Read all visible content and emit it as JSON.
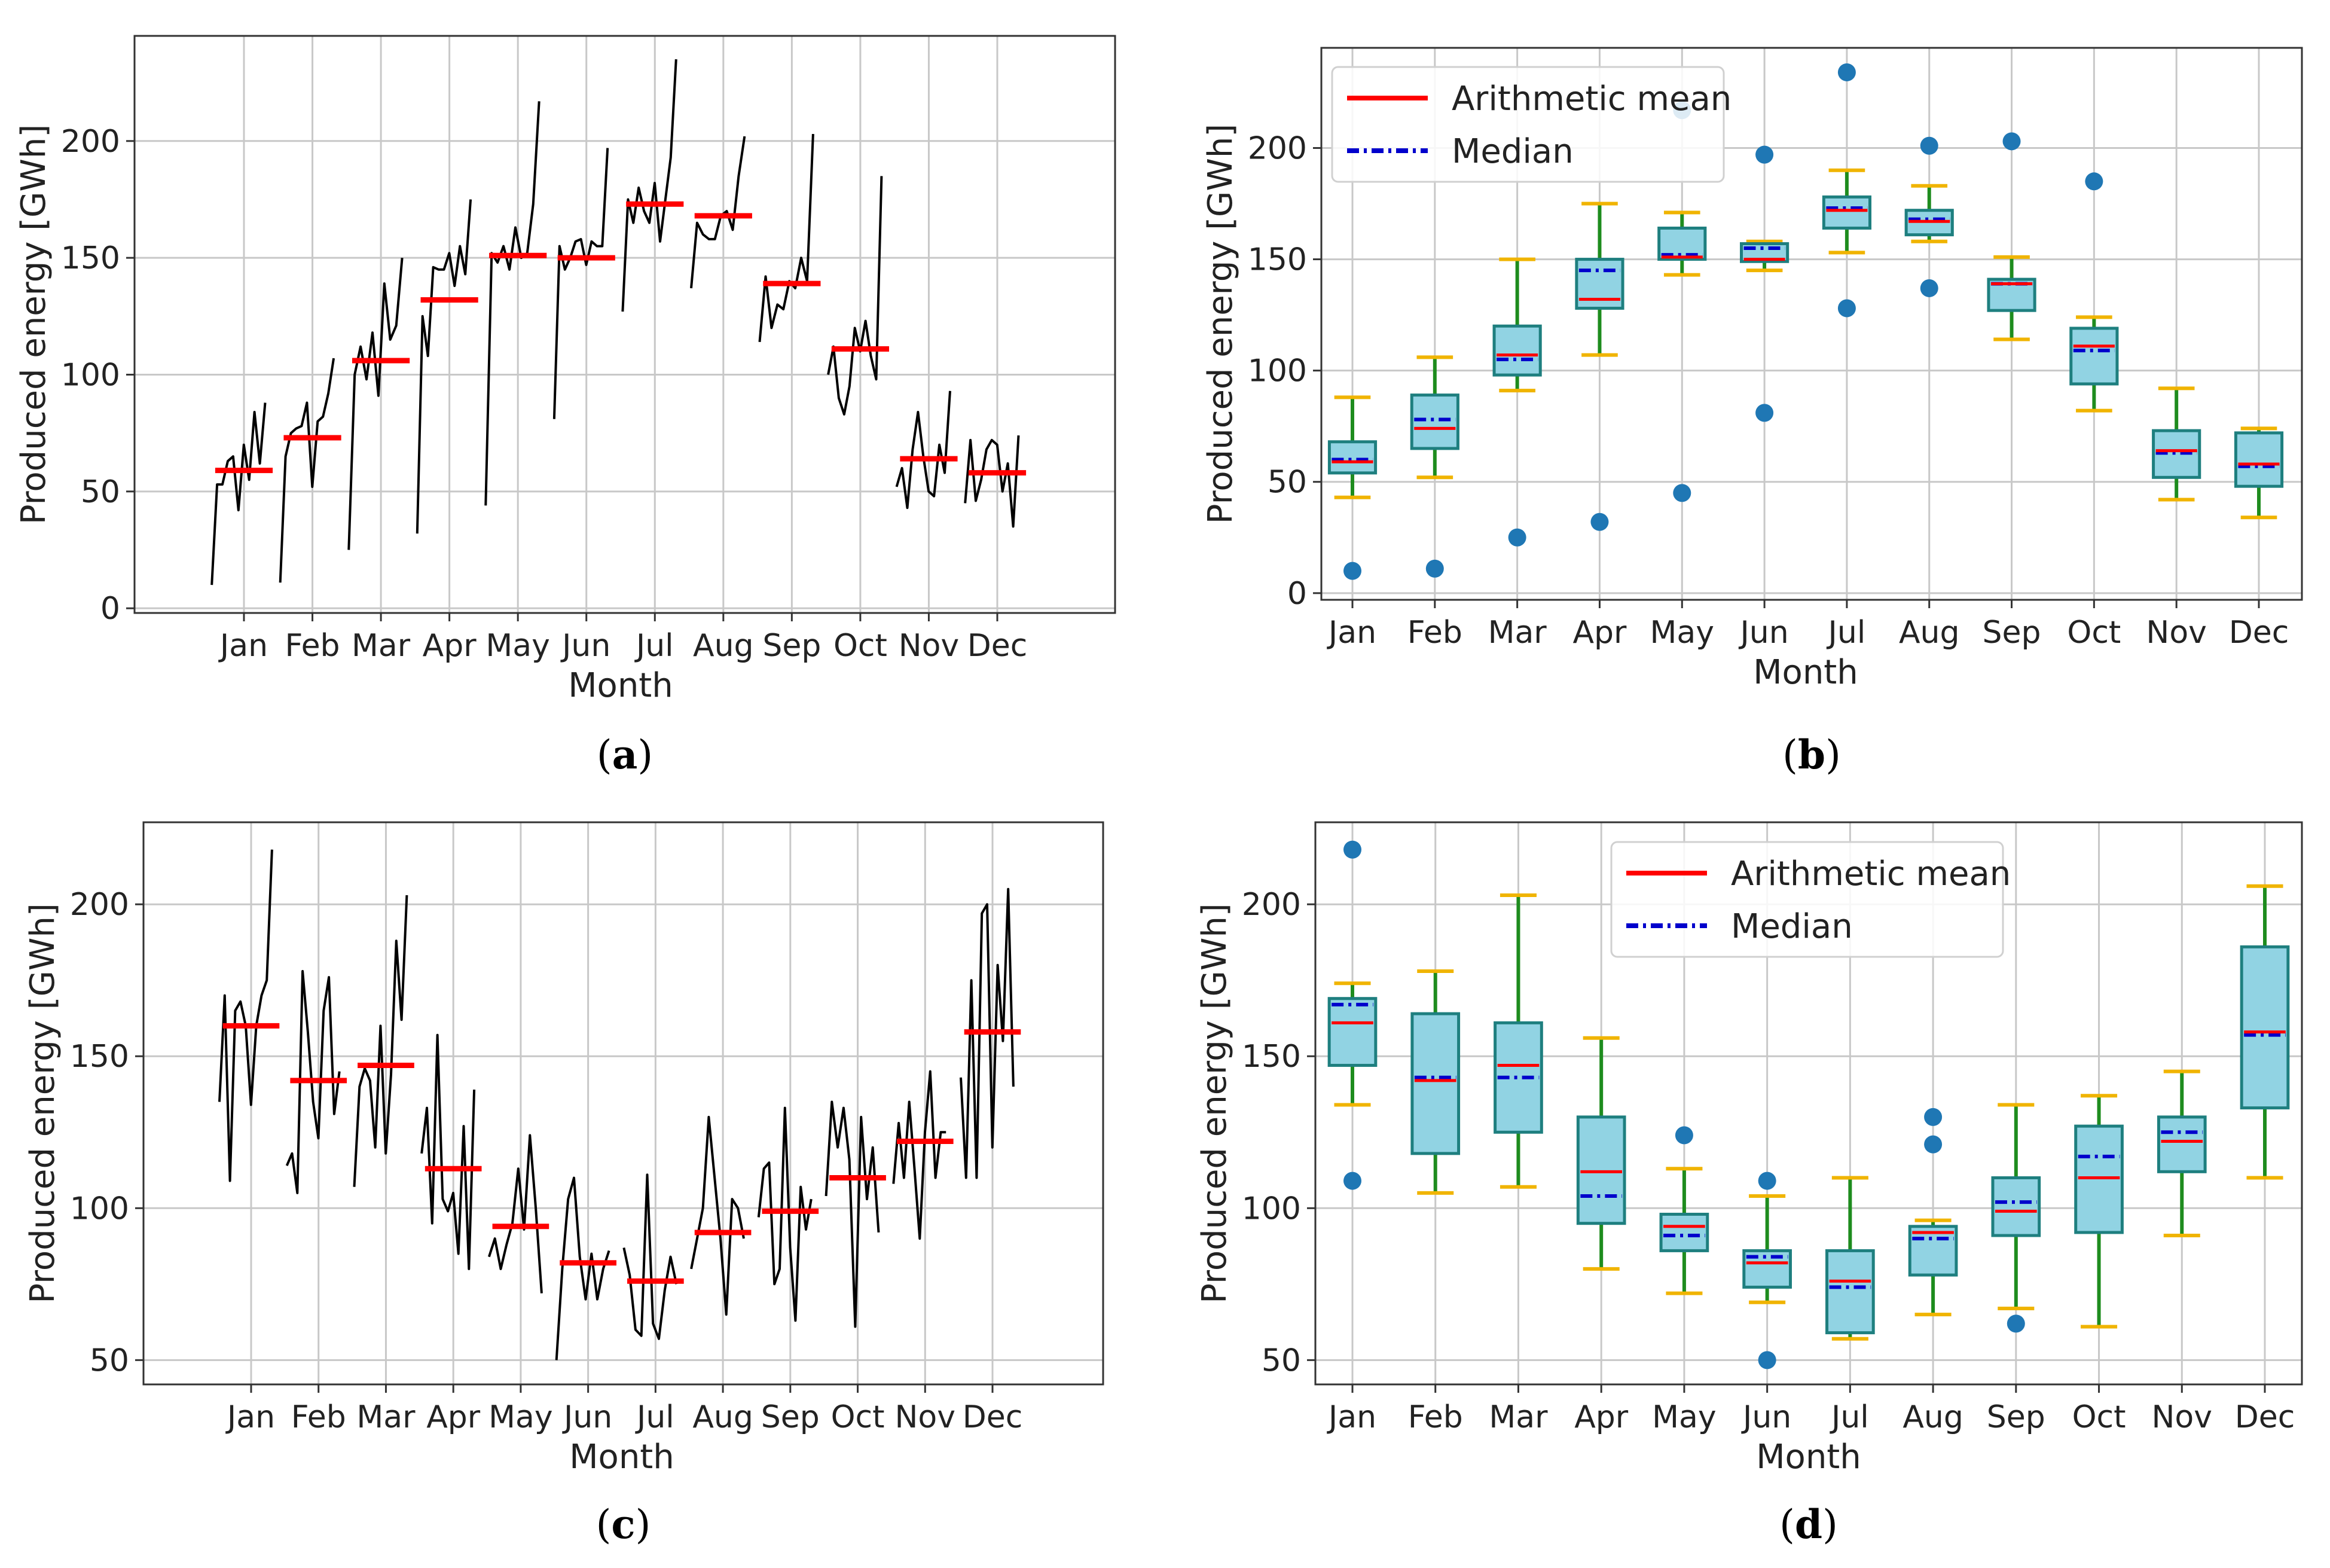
{
  "colors": {
    "series_line": "#000000",
    "mean": "#ff0000",
    "median": "#0000cc",
    "box_fill": "#91d3e3",
    "box_edge": "#1e7f7f",
    "whisker": "#1e8c1e",
    "cap": "#f0b400",
    "flier": "#1f77b4",
    "grid": "#c8c8c8",
    "axis": "#333333"
  },
  "chart_data": [
    {
      "id": "a",
      "type": "line",
      "caption": [
        "(",
        "a",
        ")"
      ],
      "xlabel": "Month",
      "ylabel": "Produced energy [GWh]",
      "ylim": [
        -2,
        245
      ],
      "yticks": [
        0,
        50,
        100,
        150,
        200
      ],
      "grid": true,
      "categories": [
        "Jan",
        "Feb",
        "Mar",
        "Apr",
        "May",
        "Jun",
        "Jul",
        "Aug",
        "Sep",
        "Oct",
        "Nov",
        "Dec"
      ],
      "monthly_mean": [
        59,
        73,
        106,
        132,
        151,
        150,
        173,
        168,
        139,
        111,
        64,
        58
      ],
      "daily": [
        [
          10,
          53,
          53,
          63,
          65,
          42,
          70,
          55,
          84,
          62,
          88
        ],
        [
          11,
          65,
          75,
          77,
          78,
          88,
          52,
          80,
          82,
          92,
          107
        ],
        [
          25,
          100,
          112,
          98,
          118,
          91,
          139,
          115,
          121,
          150
        ],
        [
          32,
          125,
          108,
          146,
          145,
          145,
          152,
          138,
          155,
          143,
          175
        ],
        [
          44,
          152,
          148,
          155,
          145,
          163,
          150,
          152,
          173,
          217
        ],
        [
          81,
          155,
          145,
          150,
          157,
          158,
          147,
          157,
          155,
          155,
          197
        ],
        [
          127,
          175,
          165,
          180,
          170,
          165,
          182,
          157,
          175,
          193,
          235
        ],
        [
          137,
          165,
          160,
          158,
          158,
          168,
          170,
          162,
          185,
          202
        ],
        [
          114,
          142,
          120,
          130,
          128,
          140,
          137,
          150,
          140,
          203
        ],
        [
          100,
          112,
          90,
          83,
          95,
          120,
          110,
          123,
          108,
          98,
          185
        ],
        [
          52,
          60,
          43,
          68,
          84,
          65,
          50,
          48,
          70,
          58,
          93
        ],
        [
          45,
          72,
          46,
          55,
          68,
          72,
          70,
          50,
          62,
          35,
          74
        ]
      ]
    },
    {
      "id": "b",
      "type": "box",
      "caption": [
        "(",
        "b",
        ")"
      ],
      "xlabel": "Month",
      "ylabel": "Produced energy [GWh]",
      "ylim": [
        -3,
        245
      ],
      "yticks": [
        0,
        50,
        100,
        150,
        200
      ],
      "grid": true,
      "legend": {
        "location": "top-left",
        "entries": [
          "Arithmetic mean",
          "Median"
        ]
      },
      "categories": [
        "Jan",
        "Feb",
        "Mar",
        "Apr",
        "May",
        "Jun",
        "Jul",
        "Aug",
        "Sep",
        "Oct",
        "Nov",
        "Dec"
      ],
      "boxes": [
        {
          "whislo": 43,
          "q1": 54,
          "med": 60,
          "q3": 68,
          "whishi": 88,
          "mean": 59,
          "fliers": [
            10
          ]
        },
        {
          "whislo": 52,
          "q1": 65,
          "med": 78,
          "q3": 89,
          "whishi": 106,
          "mean": 74,
          "fliers": [
            11
          ]
        },
        {
          "whislo": 91,
          "q1": 98,
          "med": 105,
          "q3": 120,
          "whishi": 150,
          "mean": 107,
          "fliers": [
            25
          ]
        },
        {
          "whislo": 107,
          "q1": 128,
          "med": 145,
          "q3": 150,
          "whishi": 175,
          "mean": 132,
          "fliers": [
            32
          ]
        },
        {
          "whislo": 143,
          "q1": 150,
          "med": 152,
          "q3": 164,
          "whishi": 171,
          "mean": 151,
          "fliers": [
            45,
            217
          ]
        },
        {
          "whislo": 145,
          "q1": 149,
          "med": 155,
          "q3": 157,
          "whishi": 158,
          "mean": 150,
          "fliers": [
            81,
            197
          ]
        },
        {
          "whislo": 153,
          "q1": 164,
          "med": 173,
          "q3": 178,
          "whishi": 190,
          "mean": 172,
          "fliers": [
            128,
            234
          ]
        },
        {
          "whislo": 158,
          "q1": 161,
          "med": 168,
          "q3": 172,
          "whishi": 183,
          "mean": 167,
          "fliers": [
            137,
            201
          ]
        },
        {
          "whislo": 114,
          "q1": 127,
          "med": 139,
          "q3": 141,
          "whishi": 151,
          "mean": 139,
          "fliers": [
            203
          ]
        },
        {
          "whislo": 82,
          "q1": 94,
          "med": 109,
          "q3": 119,
          "whishi": 124,
          "mean": 111,
          "fliers": [
            185
          ]
        },
        {
          "whislo": 42,
          "q1": 52,
          "med": 63,
          "q3": 73,
          "whishi": 92,
          "mean": 64,
          "fliers": []
        },
        {
          "whislo": 34,
          "q1": 48,
          "med": 57,
          "q3": 72,
          "whishi": 74,
          "mean": 58,
          "fliers": []
        }
      ]
    },
    {
      "id": "c",
      "type": "line",
      "caption": [
        "(",
        "c",
        ")"
      ],
      "xlabel": "Month",
      "ylabel": "Produced energy [GWh]",
      "ylim": [
        42,
        227
      ],
      "yticks": [
        50,
        100,
        150,
        200
      ],
      "grid": true,
      "categories": [
        "Jan",
        "Feb",
        "Mar",
        "Apr",
        "May",
        "Jun",
        "Jul",
        "Aug",
        "Sep",
        "Oct",
        "Nov",
        "Dec"
      ],
      "monthly_mean": [
        160,
        142,
        147,
        113,
        94,
        82,
        76,
        92,
        99,
        110,
        122,
        158
      ],
      "daily": [
        [
          135,
          170,
          109,
          165,
          168,
          160,
          134,
          160,
          170,
          175,
          218
        ],
        [
          114,
          118,
          105,
          178,
          158,
          135,
          123,
          165,
          176,
          131,
          145
        ],
        [
          107,
          140,
          146,
          142,
          120,
          160,
          118,
          144,
          188,
          162,
          203
        ],
        [
          118,
          133,
          95,
          157,
          103,
          99,
          105,
          85,
          127,
          80,
          139
        ],
        [
          84,
          90,
          80,
          88,
          95,
          113,
          93,
          124,
          100,
          72
        ],
        [
          50,
          80,
          103,
          110,
          84,
          70,
          85,
          70,
          80,
          86
        ],
        [
          87,
          78,
          60,
          58,
          111,
          62,
          57,
          73,
          84,
          75
        ],
        [
          80,
          90,
          100,
          130,
          110,
          90,
          65,
          103,
          100,
          90
        ],
        [
          97,
          113,
          115,
          75,
          80,
          133,
          87,
          63,
          107,
          93,
          103
        ],
        [
          104,
          135,
          120,
          133,
          116,
          61,
          130,
          103,
          120,
          92
        ],
        [
          108,
          128,
          110,
          135,
          113,
          90,
          125,
          145,
          110,
          125,
          125
        ],
        [
          143,
          110,
          175,
          110,
          197,
          200,
          120,
          180,
          155,
          205,
          140
        ]
      ]
    },
    {
      "id": "d",
      "type": "box",
      "caption": [
        "(",
        "d",
        ")"
      ],
      "xlabel": "Month",
      "ylabel": "Produced energy [GWh]",
      "ylim": [
        42,
        227
      ],
      "yticks": [
        50,
        100,
        150,
        200
      ],
      "grid": true,
      "legend": {
        "location": "top-center",
        "entries": [
          "Arithmetic mean",
          "Median"
        ]
      },
      "categories": [
        "Jan",
        "Feb",
        "Mar",
        "Apr",
        "May",
        "Jun",
        "Jul",
        "Aug",
        "Sep",
        "Oct",
        "Nov",
        "Dec"
      ],
      "boxes": [
        {
          "whislo": 134,
          "q1": 147,
          "med": 167,
          "q3": 169,
          "whishi": 174,
          "mean": 161,
          "fliers": [
            109,
            218
          ]
        },
        {
          "whislo": 105,
          "q1": 118,
          "med": 143,
          "q3": 164,
          "whishi": 178,
          "mean": 142,
          "fliers": []
        },
        {
          "whislo": 107,
          "q1": 125,
          "med": 143,
          "q3": 161,
          "whishi": 203,
          "mean": 147,
          "fliers": []
        },
        {
          "whislo": 80,
          "q1": 95,
          "med": 104,
          "q3": 130,
          "whishi": 156,
          "mean": 112,
          "fliers": []
        },
        {
          "whislo": 72,
          "q1": 86,
          "med": 91,
          "q3": 98,
          "whishi": 113,
          "mean": 94,
          "fliers": [
            124
          ]
        },
        {
          "whislo": 69,
          "q1": 74,
          "med": 84,
          "q3": 86,
          "whishi": 104,
          "mean": 82,
          "fliers": [
            50,
            109
          ]
        },
        {
          "whislo": 57,
          "q1": 59,
          "med": 74,
          "q3": 86,
          "whishi": 110,
          "mean": 76,
          "fliers": []
        },
        {
          "whislo": 65,
          "q1": 78,
          "med": 90,
          "q3": 94,
          "whishi": 96,
          "mean": 92,
          "fliers": [
            121,
            130
          ]
        },
        {
          "whislo": 67,
          "q1": 91,
          "med": 102,
          "q3": 110,
          "whishi": 134,
          "mean": 99,
          "fliers": [
            62
          ]
        },
        {
          "whislo": 61,
          "q1": 92,
          "med": 117,
          "q3": 127,
          "whishi": 137,
          "mean": 110,
          "fliers": []
        },
        {
          "whislo": 91,
          "q1": 112,
          "med": 125,
          "q3": 130,
          "whishi": 145,
          "mean": 122,
          "fliers": []
        },
        {
          "whislo": 110,
          "q1": 133,
          "med": 157,
          "q3": 186,
          "whishi": 206,
          "mean": 158,
          "fliers": []
        }
      ]
    }
  ]
}
